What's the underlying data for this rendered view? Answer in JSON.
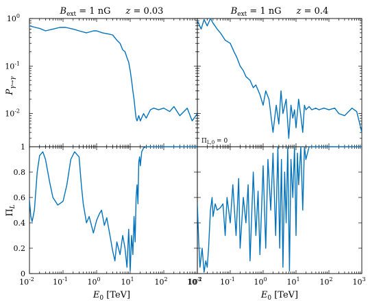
{
  "titles": {
    "left": "B_ext = 1 nG     z = 0.03",
    "right": "B_ext = 1 nG     z = 0.4"
  },
  "annotation": "Π_{L,0} = 0",
  "axis_labels": {
    "ylabel_top": "P_{γ→γ}",
    "ylabel_bottom": "Π_L",
    "xlabel": "E_0 [TeV]"
  },
  "colors": {
    "line": "#0072bd",
    "axes": "#000000"
  },
  "chart_data": [
    {
      "type": "line",
      "panel": "top-left",
      "title": "B_ext = 1 nG   z = 0.03",
      "xscale": "log",
      "yscale": "log",
      "xlim": [
        0.01,
        1000
      ],
      "ylim": [
        0.002,
        1
      ],
      "ylabel": "P_{γ→γ}",
      "yticklabels": [
        "10^0",
        "10^-1",
        "10^-2"
      ],
      "x": [
        0.01,
        0.015,
        0.02,
        0.03,
        0.05,
        0.08,
        0.12,
        0.2,
        0.3,
        0.5,
        0.8,
        1.0,
        1.5,
        2,
        3,
        4,
        5,
        6,
        7,
        8,
        9,
        10,
        11,
        12,
        13,
        14,
        15,
        16,
        18,
        20,
        25,
        30,
        40,
        50,
        70,
        100,
        150,
        200,
        300,
        500,
        700,
        1000
      ],
      "y": [
        0.7,
        0.65,
        0.62,
        0.55,
        0.6,
        0.65,
        0.65,
        0.6,
        0.55,
        0.5,
        0.55,
        0.55,
        0.5,
        0.48,
        0.45,
        0.35,
        0.3,
        0.22,
        0.2,
        0.15,
        0.12,
        0.08,
        0.05,
        0.03,
        0.02,
        0.012,
        0.008,
        0.007,
        0.009,
        0.007,
        0.01,
        0.008,
        0.012,
        0.013,
        0.012,
        0.013,
        0.011,
        0.014,
        0.009,
        0.013,
        0.007,
        0.01
      ]
    },
    {
      "type": "line",
      "panel": "top-right",
      "title": "B_ext = 1 nG   z = 0.4",
      "xscale": "log",
      "yscale": "log",
      "xlim": [
        0.01,
        1000
      ],
      "ylim": [
        0.002,
        1
      ],
      "x": [
        0.01,
        0.013,
        0.016,
        0.02,
        0.025,
        0.03,
        0.04,
        0.05,
        0.07,
        0.1,
        0.13,
        0.16,
        0.2,
        0.25,
        0.3,
        0.4,
        0.5,
        0.6,
        0.8,
        1.0,
        1.2,
        1.5,
        2,
        2.5,
        3,
        3.5,
        4,
        5,
        6,
        7,
        8,
        9,
        10,
        12,
        14,
        16,
        18,
        20,
        25,
        30,
        40,
        50,
        70,
        100,
        150,
        200,
        300,
        500,
        700,
        1000
      ],
      "y": [
        0.9,
        0.6,
        0.95,
        0.7,
        1.0,
        0.8,
        0.6,
        0.5,
        0.35,
        0.3,
        0.2,
        0.15,
        0.1,
        0.08,
        0.06,
        0.05,
        0.035,
        0.04,
        0.025,
        0.015,
        0.03,
        0.02,
        0.004,
        0.015,
        0.006,
        0.03,
        0.01,
        0.02,
        0.003,
        0.015,
        0.008,
        0.012,
        0.005,
        0.02,
        0.009,
        0.004,
        0.015,
        0.012,
        0.014,
        0.012,
        0.013,
        0.012,
        0.013,
        0.012,
        0.013,
        0.01,
        0.009,
        0.013,
        0.011,
        0.004
      ]
    },
    {
      "type": "line",
      "panel": "bottom-left",
      "xscale": "log",
      "yscale": "linear",
      "xlim": [
        0.01,
        1000
      ],
      "ylim": [
        0,
        1
      ],
      "ylabel": "Π_L",
      "xlabel": "E_0 [TeV]",
      "xticklabels": [
        "10^-2",
        "10^-1",
        "10^0",
        "10^1",
        "10^2",
        "10^3"
      ],
      "yticklabels": [
        "0",
        "0.2",
        "0.4",
        "0.6",
        "0.8",
        "1"
      ],
      "x": [
        0.01,
        0.011,
        0.012,
        0.014,
        0.017,
        0.02,
        0.025,
        0.03,
        0.04,
        0.05,
        0.07,
        0.1,
        0.13,
        0.17,
        0.22,
        0.3,
        0.35,
        0.4,
        0.5,
        0.6,
        0.8,
        1.0,
        1.2,
        1.4,
        1.7,
        2,
        2.5,
        3,
        3.5,
        4,
        5,
        6,
        7,
        8,
        9,
        10,
        11,
        12,
        13,
        14,
        15,
        16,
        17,
        18,
        19,
        20,
        22,
        25,
        30,
        40,
        60,
        100,
        200,
        400,
        1000
      ],
      "y": [
        0.58,
        0.45,
        0.41,
        0.5,
        0.8,
        0.93,
        0.96,
        0.9,
        0.72,
        0.6,
        0.54,
        0.57,
        0.7,
        0.9,
        0.96,
        0.92,
        0.7,
        0.55,
        0.4,
        0.45,
        0.32,
        0.42,
        0.47,
        0.5,
        0.38,
        0.44,
        0.3,
        0.18,
        0.1,
        0.25,
        0.15,
        0.3,
        0.2,
        0.05,
        0.35,
        0.02,
        0.3,
        0.15,
        0.45,
        0.25,
        0.6,
        0.7,
        0.55,
        0.88,
        0.92,
        0.85,
        0.96,
        0.99,
        1.0,
        1.0,
        1.0,
        1.0,
        1.0,
        1.0,
        1.0
      ]
    },
    {
      "type": "line",
      "panel": "bottom-right",
      "xscale": "log",
      "yscale": "linear",
      "xlim": [
        0.01,
        1000
      ],
      "ylim": [
        0,
        1
      ],
      "xlabel": "E_0 [TeV]",
      "xticklabels": [
        "10^-2",
        "10^-1",
        "10^0",
        "10^1",
        "10^2",
        "10^3"
      ],
      "x": [
        0.01,
        0.011,
        0.012,
        0.014,
        0.016,
        0.018,
        0.02,
        0.022,
        0.025,
        0.028,
        0.03,
        0.035,
        0.04,
        0.05,
        0.06,
        0.07,
        0.08,
        0.1,
        0.12,
        0.15,
        0.18,
        0.2,
        0.25,
        0.3,
        0.35,
        0.4,
        0.5,
        0.6,
        0.7,
        0.8,
        1.0,
        1.2,
        1.4,
        1.7,
        2,
        2.4,
        2.8,
        3.2,
        3.6,
        4,
        4.5,
        5,
        5.6,
        6.3,
        7,
        8,
        9,
        10,
        11,
        12,
        14,
        16,
        18,
        20,
        25,
        30,
        40,
        60,
        100,
        200,
        400,
        1000
      ],
      "y": [
        0.55,
        0.25,
        0.05,
        0.2,
        0.01,
        0.1,
        0.05,
        0.2,
        0.5,
        0.6,
        0.45,
        0.55,
        0.5,
        0.52,
        0.55,
        0.3,
        0.6,
        0.4,
        0.7,
        0.3,
        0.75,
        0.2,
        0.6,
        0.4,
        0.7,
        0.1,
        0.8,
        0.3,
        0.65,
        0.15,
        0.85,
        0.2,
        0.9,
        0.5,
        0.95,
        0.3,
        1.0,
        0.2,
        0.9,
        0.05,
        0.8,
        0.4,
        1.0,
        0.02,
        0.9,
        0.6,
        1.0,
        0.3,
        0.95,
        0.7,
        1.0,
        0.5,
        1.0,
        0.9,
        1.0,
        1.0,
        1.0,
        1.0,
        1.0,
        1.0,
        1.0,
        1.0
      ]
    }
  ]
}
